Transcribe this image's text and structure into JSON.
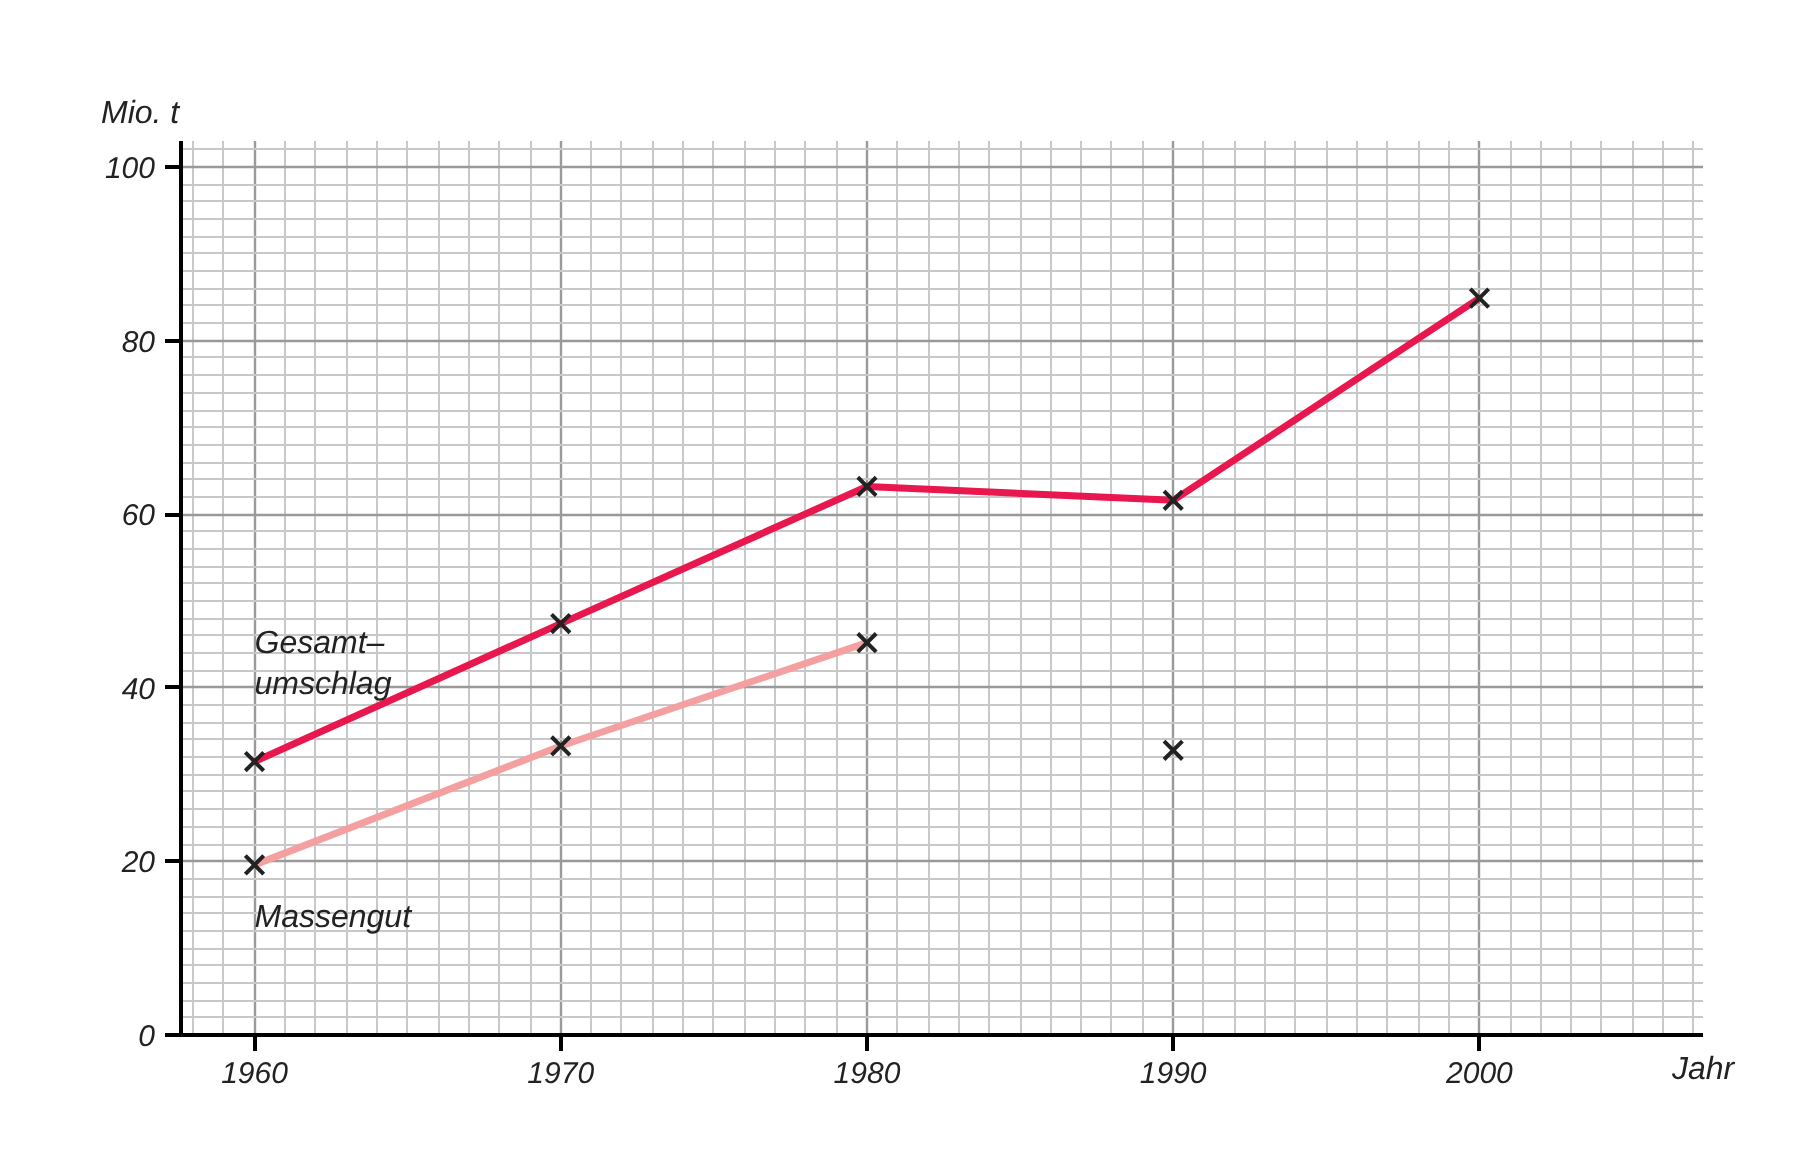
{
  "chart_data": {
    "type": "line",
    "xlabel": "Jahr",
    "ylabel": "Mio. t",
    "x": [
      1960,
      1970,
      1980,
      1990,
      2000
    ],
    "series": [
      {
        "name": "Gesamt–\numschlag",
        "color": "#e8174e",
        "values": [
          31.5,
          47.4,
          63.2,
          61.6,
          84.9
        ]
      },
      {
        "name": "Massengut",
        "color": "#f4a0a0",
        "values": [
          19.6,
          33.3,
          45.2,
          null,
          null
        ]
      },
      {
        "type": "scatter",
        "color": "#222222",
        "values": [
          null,
          null,
          null,
          32.8,
          null
        ]
      }
    ],
    "xlim": [
      1957.6,
      2007.3
    ],
    "xticks": [
      1960,
      1970,
      1980,
      1990,
      2000
    ],
    "ylim": [
      0,
      103
    ],
    "yticks": [
      0,
      20,
      40,
      60,
      80,
      100
    ],
    "grid": true,
    "marker": "cross"
  }
}
